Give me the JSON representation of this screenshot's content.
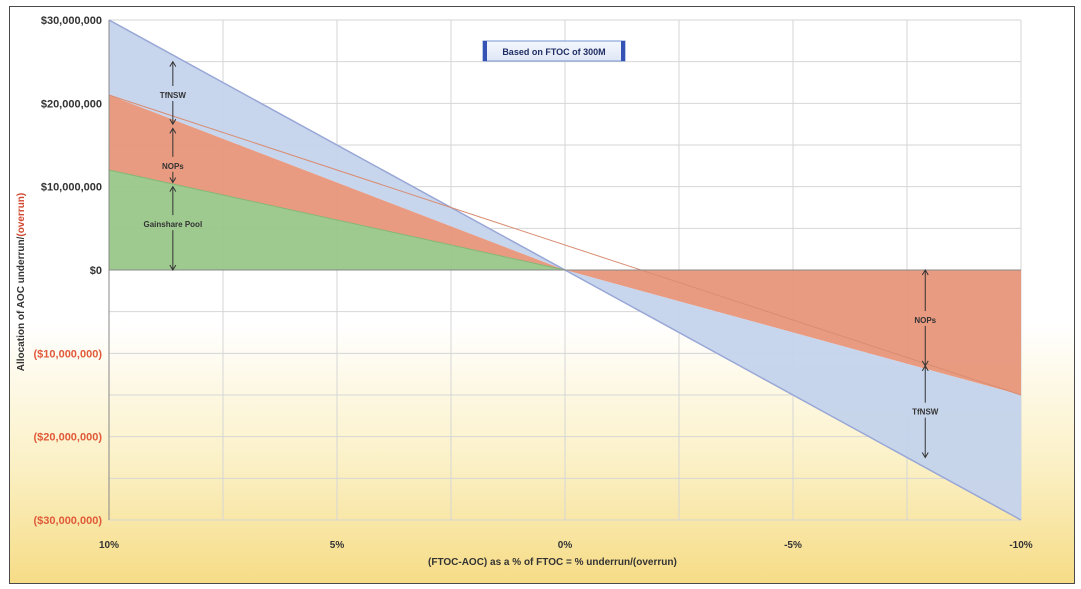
{
  "chart_data": {
    "type": "area",
    "title": "Based on FTOC of 300M",
    "xlabel": "(FTOC-AOC) as a % of FTOC = % underrun/(overrun)",
    "ylabel_part1": "Allocation of AOC underrun/",
    "ylabel_part2": "(overrun)",
    "x_ticks": [
      "10%",
      "5%",
      "0%",
      "-5%",
      "-10%"
    ],
    "x_tick_values": [
      10,
      5,
      0,
      -5,
      -10
    ],
    "y_ticks": [
      "$30,000,000",
      "$20,000,000",
      "$10,000,000",
      "$0",
      "($10,000,000)",
      "($20,000,000)",
      "($30,000,000)"
    ],
    "y_tick_values": [
      30000000,
      20000000,
      10000000,
      0,
      -10000000,
      -20000000,
      -30000000
    ],
    "xlim": [
      10,
      -10
    ],
    "ylim": [
      -30000000,
      30000000
    ],
    "grid": true,
    "series": [
      {
        "name": "Gainshare Pool",
        "color": "#99c78a",
        "points": [
          [
            10,
            0
          ],
          [
            10,
            12000000
          ],
          [
            0,
            0
          ]
        ]
      },
      {
        "name": "NOPs",
        "color": "#e8967a",
        "points": [
          [
            10,
            12000000
          ],
          [
            10,
            21000000
          ],
          [
            0,
            0
          ]
        ]
      },
      {
        "name": "TfNSW",
        "color": "#c4d3ec",
        "points": [
          [
            10,
            21000000
          ],
          [
            10,
            30000000
          ],
          [
            0,
            0
          ]
        ]
      },
      {
        "name": "NOPs",
        "color": "#e8967a",
        "points": [
          [
            0,
            0
          ],
          [
            -10,
            0
          ],
          [
            -10,
            -15000000
          ]
        ]
      },
      {
        "name": "TfNSW",
        "color": "#c4d3ec",
        "points": [
          [
            0,
            0
          ],
          [
            -10,
            -15000000
          ],
          [
            -10,
            -30000000
          ]
        ]
      }
    ],
    "annotations": [
      {
        "label": "TfNSW",
        "x": 8.6,
        "y": 21000000,
        "from": 25000000,
        "to": 17500000
      },
      {
        "label": "NOPs",
        "x": 8.6,
        "y": 12500000,
        "from": 17000000,
        "to": 10500000
      },
      {
        "label": "Gainshare Pool",
        "x": 8.6,
        "y": 5500000,
        "from": 10000000,
        "to": 0
      },
      {
        "label": "NOPs",
        "x": -7.9,
        "y": -6000000,
        "from": 0,
        "to": -11500000
      },
      {
        "label": "TfNSW",
        "x": -7.9,
        "y": -17000000,
        "from": -11500000,
        "to": -22500000
      }
    ]
  }
}
